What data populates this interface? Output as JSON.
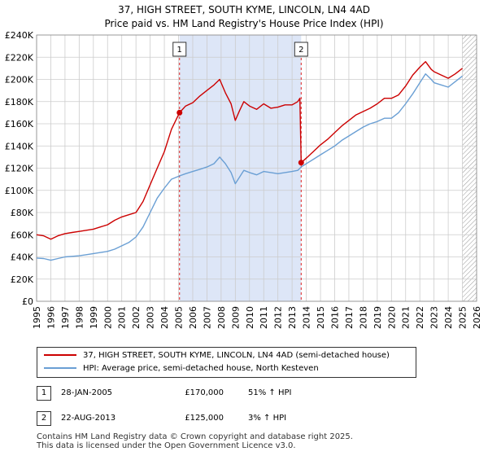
{
  "header": {
    "title": "37, HIGH STREET, SOUTH KYME, LINCOLN, LN4 4AD",
    "subtitle": "Price paid vs. HM Land Registry's House Price Index (HPI)"
  },
  "legend": {
    "red_label": "37, HIGH STREET, SOUTH KYME, LINCOLN, LN4 4AD (semi-detached house)",
    "blue_label": "HPI: Average price, semi-detached house, North Kesteven"
  },
  "transactions": [
    {
      "num": "1",
      "date": "28-JAN-2005",
      "price": "£170,000",
      "hpi": "51% ↑ HPI"
    },
    {
      "num": "2",
      "date": "22-AUG-2013",
      "price": "£125,000",
      "hpi": "3% ↑ HPI"
    }
  ],
  "footer": {
    "line1": "Contains HM Land Registry data © Crown copyright and database right 2025.",
    "line2": "This data is licensed under the Open Government Licence v3.0."
  },
  "colors": {
    "red": "#cc0000",
    "blue": "#6a9fd4",
    "shade": "#dde6f7",
    "grid": "#cccccc",
    "vline": "#dd2222"
  },
  "chart_data": {
    "type": "line",
    "xlim": [
      1995,
      2026
    ],
    "ylim": [
      0,
      240000
    ],
    "x_ticks": [
      "1995",
      "1996",
      "1997",
      "1998",
      "1999",
      "2000",
      "2001",
      "2002",
      "2003",
      "2004",
      "2005",
      "2006",
      "2007",
      "2008",
      "2009",
      "2010",
      "2011",
      "2012",
      "2013",
      "2014",
      "2015",
      "2016",
      "2017",
      "2018",
      "2019",
      "2020",
      "2021",
      "2022",
      "2023",
      "2024",
      "2025",
      "2026"
    ],
    "y_ticks": [
      "£0",
      "£20K",
      "£40K",
      "£60K",
      "£80K",
      "£100K",
      "£120K",
      "£140K",
      "£160K",
      "£180K",
      "£200K",
      "£220K",
      "£240K"
    ],
    "y_tick_values": [
      0,
      20000,
      40000,
      60000,
      80000,
      100000,
      120000,
      140000,
      160000,
      180000,
      200000,
      220000,
      240000
    ],
    "shaded_range": [
      2005.07,
      2013.64
    ],
    "future_hatch_from": 2025.0,
    "markers": [
      {
        "label": "1",
        "x": 2005.07,
        "y": 170000
      },
      {
        "label": "2",
        "x": 2013.64,
        "y": 125000
      }
    ],
    "series": [
      {
        "name": "37, HIGH STREET, SOUTH KYME, LINCOLN, LN4 4AD (semi-detached house)",
        "color": "#cc0000",
        "x": [
          1995.0,
          1995.5,
          1996.0,
          1996.5,
          1997.0,
          1997.5,
          1998.0,
          1998.5,
          1999.0,
          1999.5,
          2000.0,
          2000.5,
          2001.0,
          2001.5,
          2002.0,
          2002.5,
          2003.0,
          2003.5,
          2004.0,
          2004.5,
          2005.07,
          2005.5,
          2006.0,
          2006.5,
          2007.0,
          2007.5,
          2007.9,
          2008.3,
          2008.7,
          2009.0,
          2009.3,
          2009.6,
          2010.0,
          2010.5,
          2011.0,
          2011.5,
          2012.0,
          2012.5,
          2013.0,
          2013.4,
          2013.55,
          2013.64,
          2014.0,
          2014.5,
          2015.0,
          2015.5,
          2016.0,
          2016.5,
          2017.0,
          2017.5,
          2018.0,
          2018.5,
          2019.0,
          2019.5,
          2020.0,
          2020.5,
          2021.0,
          2021.5,
          2022.0,
          2022.4,
          2022.8,
          2023.0,
          2023.5,
          2024.0,
          2024.5,
          2025.0
        ],
        "y": [
          60000,
          59000,
          56000,
          59000,
          61000,
          62000,
          63000,
          64000,
          65000,
          67000,
          69000,
          73000,
          76000,
          78000,
          80000,
          90000,
          105000,
          120000,
          135000,
          155000,
          170000,
          176000,
          179000,
          185000,
          190000,
          195000,
          200000,
          188000,
          178000,
          163000,
          172000,
          180000,
          176000,
          173000,
          178000,
          174000,
          175000,
          177000,
          177000,
          180000,
          183000,
          125000,
          129000,
          135000,
          141000,
          146000,
          152000,
          158000,
          163000,
          168000,
          171000,
          174000,
          178000,
          183000,
          183000,
          186000,
          194000,
          204000,
          211000,
          216000,
          209000,
          207000,
          204000,
          201000,
          205000,
          210000
        ]
      },
      {
        "name": "HPI: Average price, semi-detached house, North Kesteven",
        "color": "#6a9fd4",
        "x": [
          1995.0,
          1995.5,
          1996.0,
          1996.5,
          1997.0,
          1997.5,
          1998.0,
          1998.5,
          1999.0,
          1999.5,
          2000.0,
          2000.5,
          2001.0,
          2001.5,
          2002.0,
          2002.5,
          2003.0,
          2003.5,
          2004.0,
          2004.5,
          2005.07,
          2005.5,
          2006.0,
          2006.5,
          2007.0,
          2007.5,
          2007.9,
          2008.3,
          2008.7,
          2009.0,
          2009.3,
          2009.6,
          2010.0,
          2010.5,
          2011.0,
          2011.5,
          2012.0,
          2012.5,
          2013.0,
          2013.4,
          2013.64,
          2014.0,
          2014.5,
          2015.0,
          2015.5,
          2016.0,
          2016.5,
          2017.0,
          2017.5,
          2018.0,
          2018.5,
          2019.0,
          2019.5,
          2020.0,
          2020.5,
          2021.0,
          2021.5,
          2022.0,
          2022.4,
          2022.8,
          2023.0,
          2023.5,
          2024.0,
          2024.5,
          2025.0
        ],
        "y": [
          39000,
          38500,
          37000,
          38500,
          40000,
          40500,
          41000,
          42000,
          43000,
          44000,
          45000,
          47000,
          50000,
          53000,
          58000,
          67000,
          80000,
          93000,
          102000,
          110000,
          113000,
          115000,
          117000,
          119000,
          121000,
          124000,
          130000,
          124000,
          116000,
          106000,
          112000,
          118000,
          116000,
          114000,
          117000,
          116000,
          115000,
          116000,
          117000,
          118000,
          121000,
          124000,
          128000,
          132000,
          136000,
          140000,
          145000,
          149000,
          153000,
          157000,
          160000,
          162000,
          165000,
          165000,
          170000,
          178000,
          187000,
          197000,
          205000,
          200000,
          197000,
          195000,
          193000,
          198000,
          203000
        ]
      }
    ]
  }
}
